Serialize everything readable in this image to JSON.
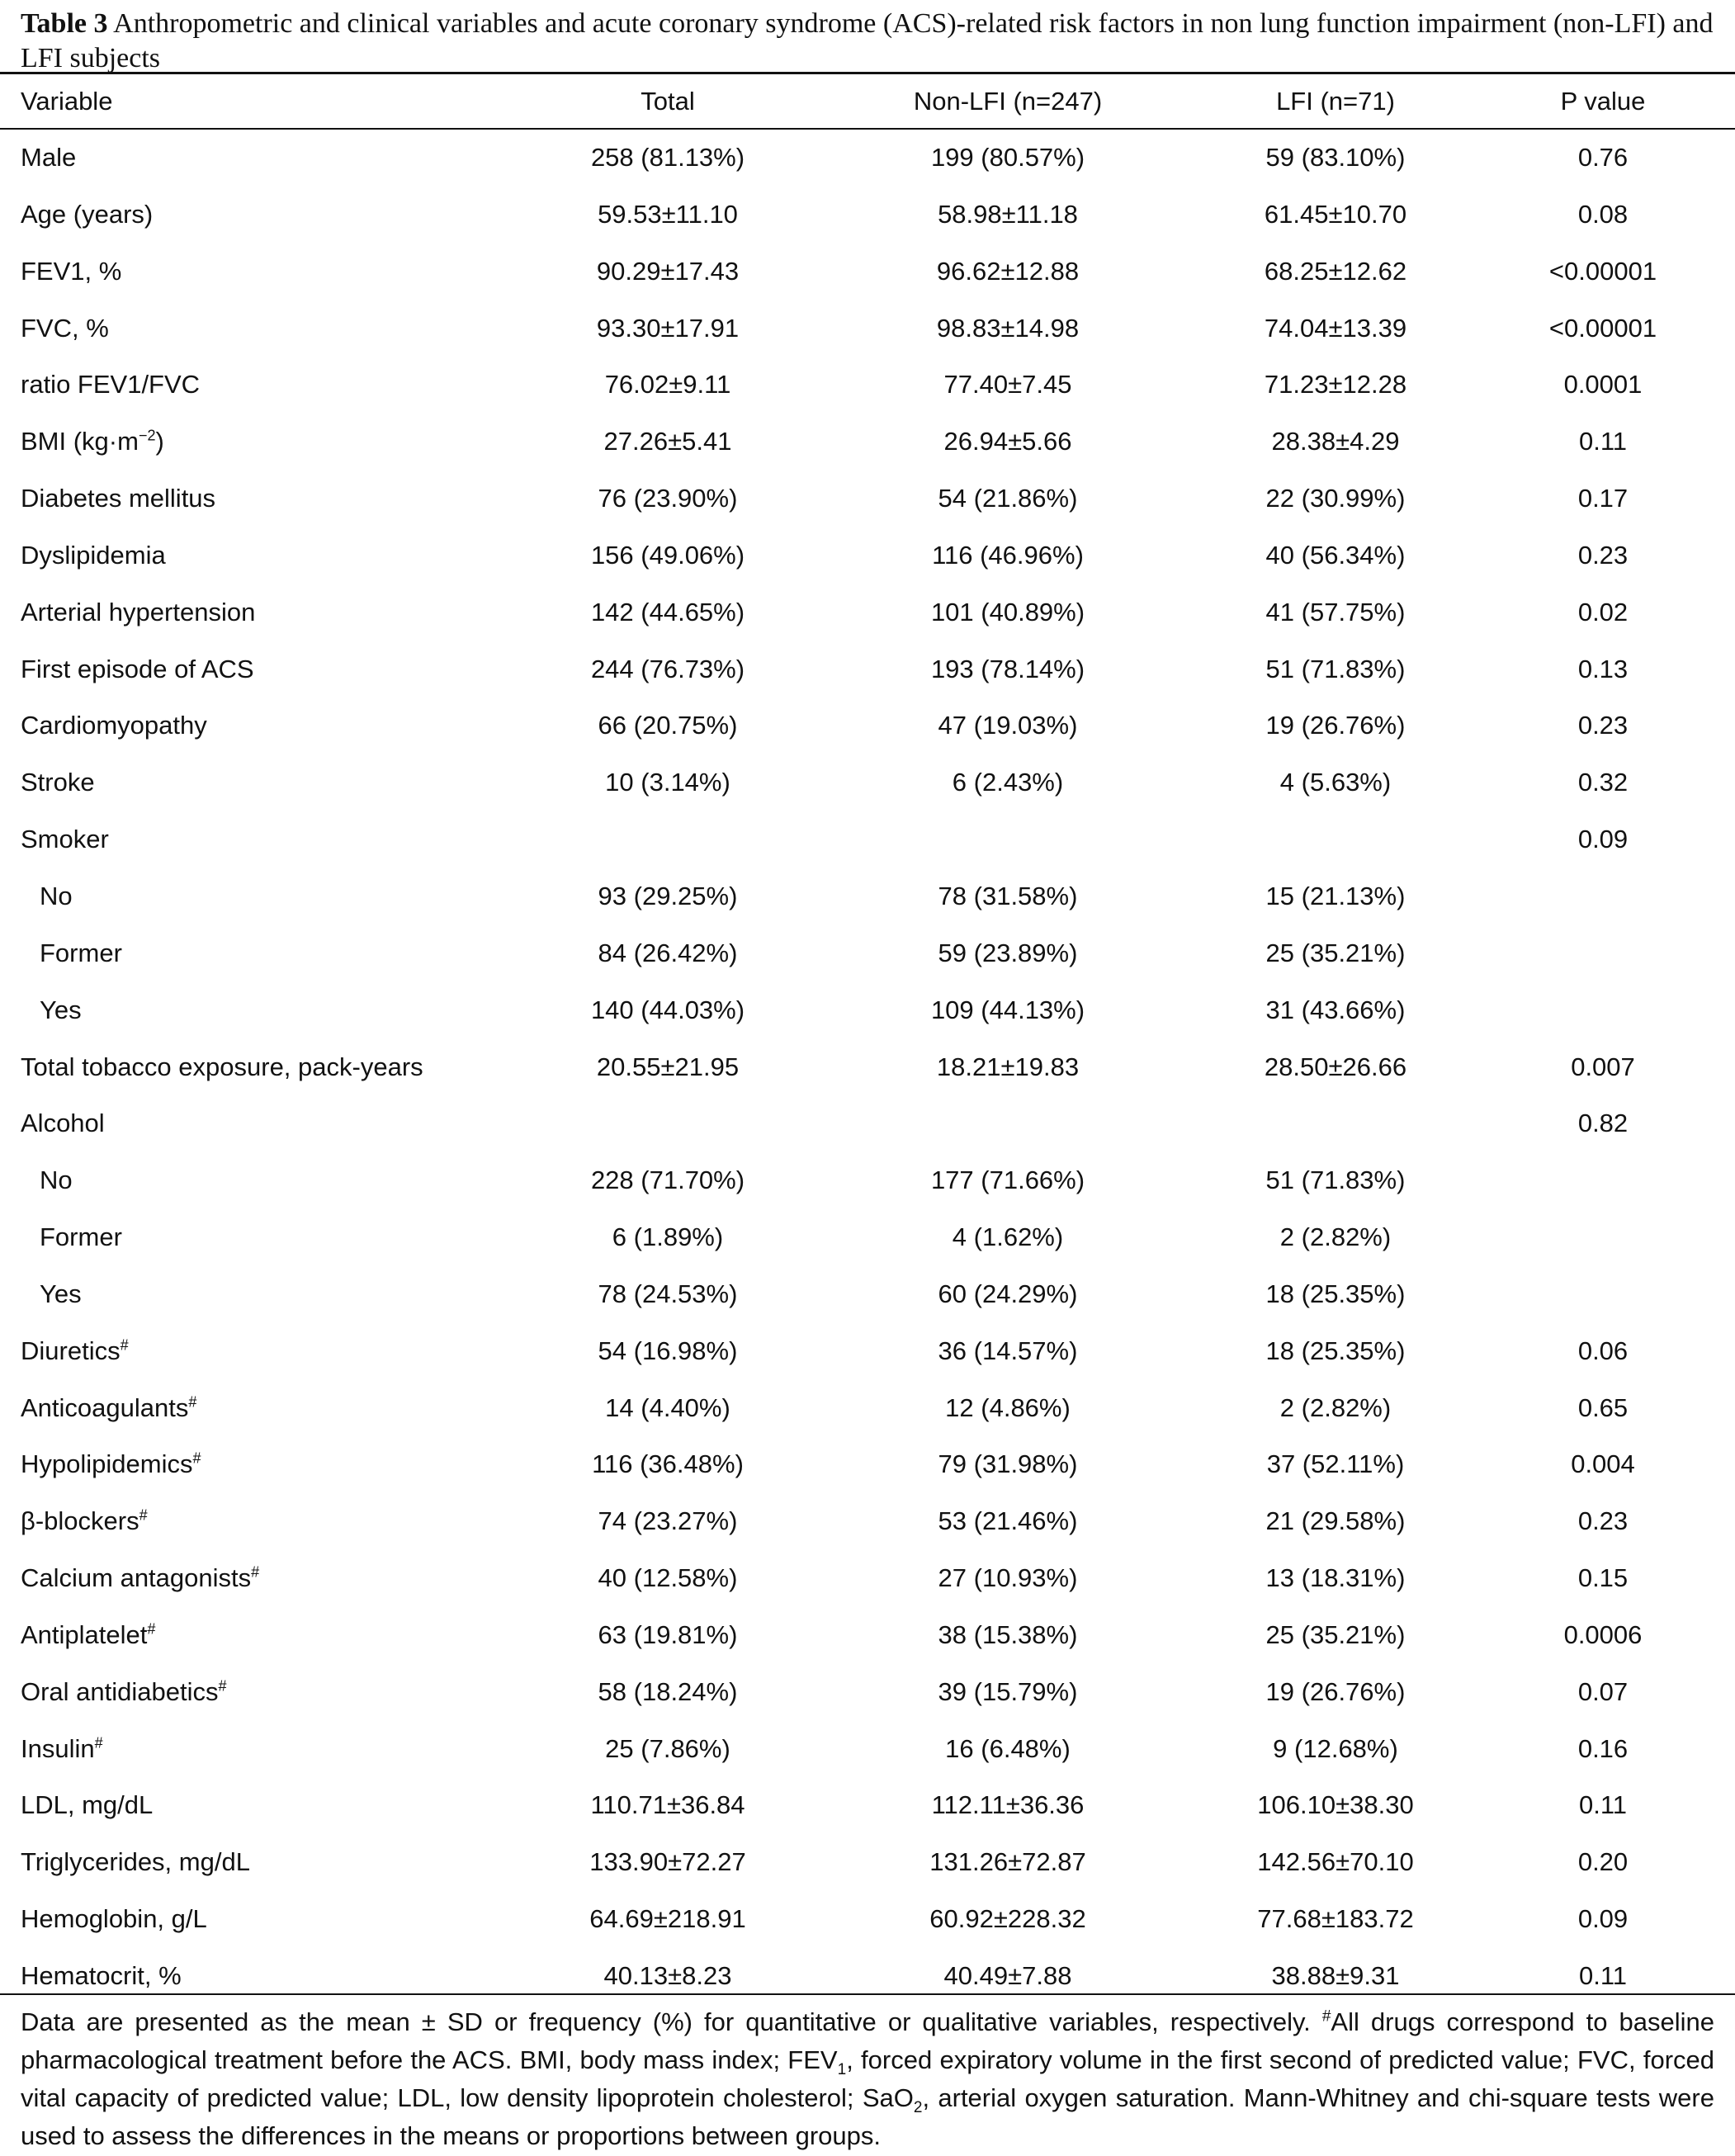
{
  "caption": {
    "label": "Table 3",
    "text": "Anthropometric and clinical variables and acute coronary syndrome (ACS)-related risk factors in non lung function impairment (non-LFI) and LFI subjects"
  },
  "headers": {
    "variable": "Variable",
    "total": "Total",
    "non_lfi": "Non-LFI (n=247)",
    "lfi": "LFI (n=71)",
    "p_value": "P value"
  },
  "rows": [
    {
      "variable": "Male",
      "total": "258 (81.13%)",
      "non_lfi": "199 (80.57%)",
      "lfi": "59 (83.10%)",
      "p": "0.76"
    },
    {
      "variable": "Age (years)",
      "total": "59.53±11.10",
      "non_lfi": "58.98±11.18",
      "lfi": "61.45±10.70",
      "p": "0.08"
    },
    {
      "variable": "FEV1, %",
      "total": "90.29±17.43",
      "non_lfi": "96.62±12.88",
      "lfi": "68.25±12.62",
      "p": "<0.00001"
    },
    {
      "variable": "FVC, %",
      "total": "93.30±17.91",
      "non_lfi": "98.83±14.98",
      "lfi": "74.04±13.39",
      "p": "<0.00001"
    },
    {
      "variable": "ratio FEV1/FVC",
      "total": "76.02±9.11",
      "non_lfi": "77.40±7.45",
      "lfi": "71.23±12.28",
      "p": "0.0001"
    },
    {
      "variable": "BMI (kg·m",
      "exp": "−2",
      "variable_suffix": ")",
      "total": "27.26±5.41",
      "non_lfi": "26.94±5.66",
      "lfi": "28.38±4.29",
      "p": "0.11"
    },
    {
      "variable": "Diabetes mellitus",
      "total": "76 (23.90%)",
      "non_lfi": "54 (21.86%)",
      "lfi": "22 (30.99%)",
      "p": "0.17"
    },
    {
      "variable": "Dyslipidemia",
      "total": "156 (49.06%)",
      "non_lfi": "116 (46.96%)",
      "lfi": "40 (56.34%)",
      "p": "0.23"
    },
    {
      "variable": "Arterial hypertension",
      "total": "142 (44.65%)",
      "non_lfi": "101 (40.89%)",
      "lfi": "41 (57.75%)",
      "p": "0.02"
    },
    {
      "variable": "First episode of ACS",
      "total": "244 (76.73%)",
      "non_lfi": "193 (78.14%)",
      "lfi": "51 (71.83%)",
      "p": "0.13"
    },
    {
      "variable": "Cardiomyopathy",
      "total": "66 (20.75%)",
      "non_lfi": "47 (19.03%)",
      "lfi": "19 (26.76%)",
      "p": "0.23"
    },
    {
      "variable": "Stroke",
      "total": "10 (3.14%)",
      "non_lfi": "6 (2.43%)",
      "lfi": "4 (5.63%)",
      "p": "0.32"
    },
    {
      "variable": "Smoker",
      "total": "",
      "non_lfi": "",
      "lfi": "",
      "p": "0.09"
    },
    {
      "variable": "No",
      "sub": true,
      "total": "93 (29.25%)",
      "non_lfi": "78 (31.58%)",
      "lfi": "15 (21.13%)",
      "p": ""
    },
    {
      "variable": "Former",
      "sub": true,
      "total": "84 (26.42%)",
      "non_lfi": "59 (23.89%)",
      "lfi": "25 (35.21%)",
      "p": ""
    },
    {
      "variable": "Yes",
      "sub": true,
      "total": "140 (44.03%)",
      "non_lfi": "109 (44.13%)",
      "lfi": "31 (43.66%)",
      "p": ""
    },
    {
      "variable": "Total tobacco exposure, pack-years",
      "total": "20.55±21.95",
      "non_lfi": "18.21±19.83",
      "lfi": "28.50±26.66",
      "p": "0.007"
    },
    {
      "variable": "Alcohol",
      "total": "",
      "non_lfi": "",
      "lfi": "",
      "p": "0.82"
    },
    {
      "variable": "No",
      "sub": true,
      "total": "228 (71.70%)",
      "non_lfi": "177 (71.66%)",
      "lfi": "51 (71.83%)",
      "p": ""
    },
    {
      "variable": "Former",
      "sub": true,
      "total": "6 (1.89%)",
      "non_lfi": "4 (1.62%)",
      "lfi": "2 (2.82%)",
      "p": ""
    },
    {
      "variable": "Yes",
      "sub": true,
      "total": "78 (24.53%)",
      "non_lfi": "60 (24.29%)",
      "lfi": "18 (25.35%)",
      "p": ""
    },
    {
      "variable": "Diuretics",
      "mark": "#",
      "total": "54 (16.98%)",
      "non_lfi": "36 (14.57%)",
      "lfi": "18 (25.35%)",
      "p": "0.06"
    },
    {
      "variable": "Anticoagulants",
      "mark": "#",
      "total": "14 (4.40%)",
      "non_lfi": "12 (4.86%)",
      "lfi": "2 (2.82%)",
      "p": "0.65"
    },
    {
      "variable": "Hypolipidemics",
      "mark": "#",
      "total": "116 (36.48%)",
      "non_lfi": "79 (31.98%)",
      "lfi": "37 (52.11%)",
      "p": "0.004"
    },
    {
      "variable": "β-blockers",
      "mark": "#",
      "total": "74 (23.27%)",
      "non_lfi": "53 (21.46%)",
      "lfi": "21 (29.58%)",
      "p": "0.23"
    },
    {
      "variable": "Calcium antagonists",
      "mark": "#",
      "total": "40 (12.58%)",
      "non_lfi": "27 (10.93%)",
      "lfi": "13 (18.31%)",
      "p": "0.15"
    },
    {
      "variable": "Antiplatelet",
      "mark": "#",
      "total": "63 (19.81%)",
      "non_lfi": "38 (15.38%)",
      "lfi": "25 (35.21%)",
      "p": "0.0006"
    },
    {
      "variable": "Oral antidiabetics",
      "mark": "#",
      "total": "58 (18.24%)",
      "non_lfi": "39 (15.79%)",
      "lfi": "19 (26.76%)",
      "p": "0.07"
    },
    {
      "variable": "Insulin",
      "mark": "#",
      "total": "25 (7.86%)",
      "non_lfi": "16 (6.48%)",
      "lfi": "9 (12.68%)",
      "p": "0.16"
    },
    {
      "variable": "LDL, mg/dL",
      "total": "110.71±36.84",
      "non_lfi": "112.11±36.36",
      "lfi": "106.10±38.30",
      "p": "0.11"
    },
    {
      "variable": "Triglycerides, mg/dL",
      "total": "133.90±72.27",
      "non_lfi": "131.26±72.87",
      "lfi": "142.56±70.10",
      "p": "0.20"
    },
    {
      "variable": "Hemoglobin, g/L",
      "total": "64.69±218.91",
      "non_lfi": "60.92±228.32",
      "lfi": "77.68±183.72",
      "p": "0.09"
    },
    {
      "variable": "Hematocrit, %",
      "total": "40.13±8.23",
      "non_lfi": "40.49±7.88",
      "lfi": "38.88±9.31",
      "p": "0.11"
    }
  ],
  "footnote": {
    "part1": "Data are presented as the mean ± SD or frequency (%) for quantitative or qualitative variables, respectively. ",
    "mark": "#",
    "part2": "All drugs correspond to baseline pharmacological treatment before the ACS. BMI, body mass index; FEV",
    "fev_sub": "1",
    "part3": ", forced expiratory volume in the first second of predicted value; FVC, forced vital capacity of predicted value; LDL, low density lipoprotein cholesterol; SaO",
    "sao_sub": "2",
    "part4": ", arterial oxygen saturation. Mann-Whitney and chi-square tests were used to assess the differences in the means or proportions between groups."
  }
}
